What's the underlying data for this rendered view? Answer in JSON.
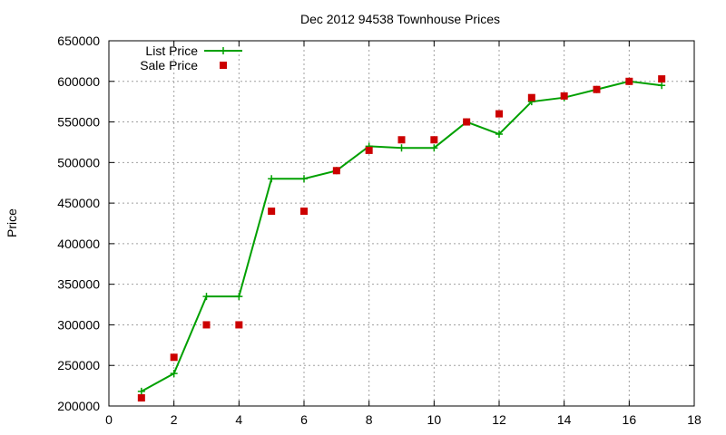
{
  "chart_data": {
    "type": "line",
    "title": "Dec 2012 94538 Townhouse Prices",
    "xlabel": "",
    "ylabel": "Price",
    "xlim": [
      0,
      18
    ],
    "ylim": [
      200000,
      650000
    ],
    "xticks": [
      0,
      2,
      4,
      6,
      8,
      10,
      12,
      14,
      16,
      18
    ],
    "yticks": [
      200000,
      250000,
      300000,
      350000,
      400000,
      450000,
      500000,
      550000,
      600000,
      650000
    ],
    "grid": true,
    "legend_position": "top-left",
    "series": [
      {
        "name": "List Price",
        "style": "line+cross",
        "color": "#00a000",
        "x": [
          1,
          2,
          3,
          4,
          5,
          6,
          7,
          8,
          9,
          10,
          11,
          12,
          13,
          14,
          15,
          16,
          17
        ],
        "y": [
          218000,
          240000,
          335000,
          335000,
          480000,
          480000,
          490000,
          520000,
          518000,
          518000,
          550000,
          535000,
          575000,
          580000,
          590000,
          600000,
          595000
        ]
      },
      {
        "name": "Sale Price",
        "style": "square",
        "color": "#cc0000",
        "x": [
          1,
          2,
          3,
          4,
          5,
          6,
          7,
          8,
          9,
          10,
          11,
          12,
          13,
          14,
          15,
          16,
          17
        ],
        "y": [
          210000,
          260000,
          300000,
          300000,
          440000,
          440000,
          490000,
          515000,
          528000,
          528000,
          550000,
          560000,
          580000,
          582000,
          590000,
          600000,
          603000
        ]
      }
    ]
  }
}
